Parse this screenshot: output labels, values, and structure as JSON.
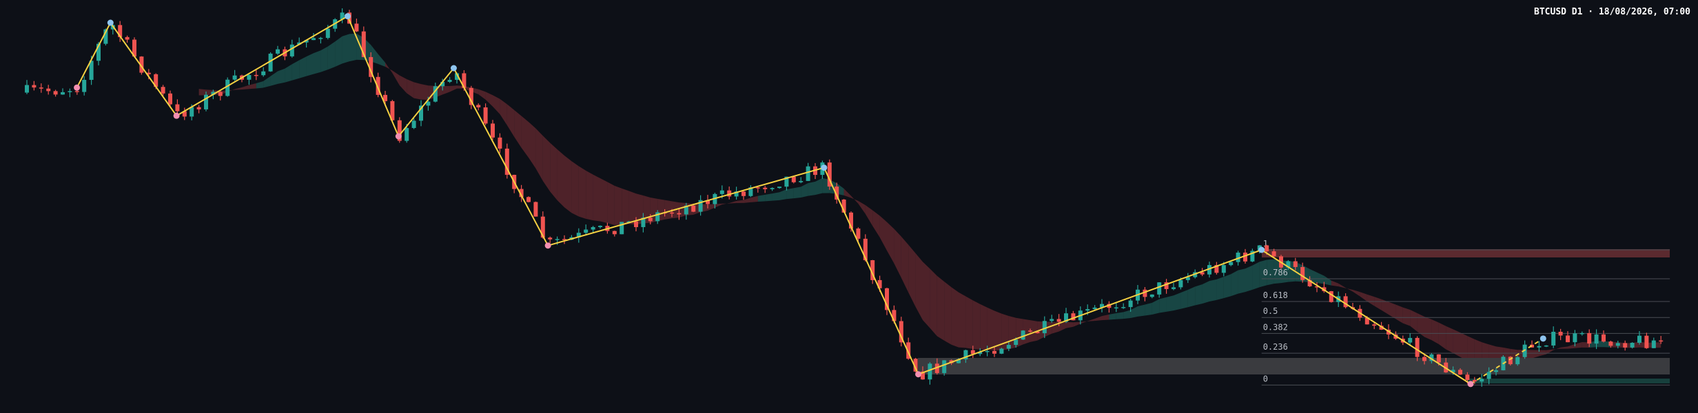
{
  "header": {
    "title": "BTCUSD D1 · 18/08/2026, 07:00"
  },
  "fib_levels": [
    1,
    0.786,
    0.618,
    0.5,
    0.382,
    0.236,
    0
  ]
}
